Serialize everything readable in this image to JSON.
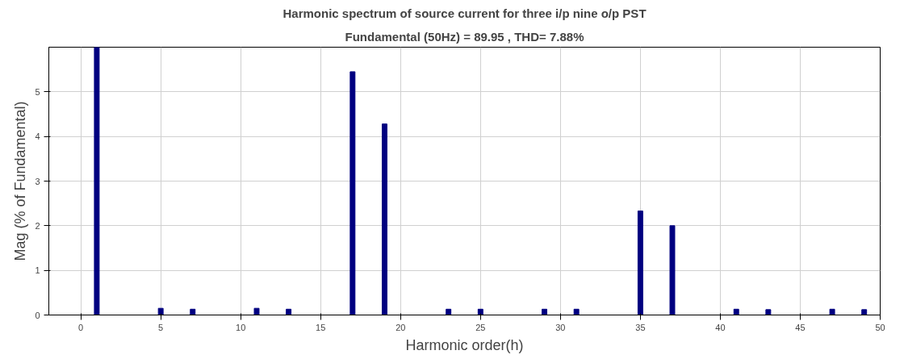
{
  "chart_data": {
    "type": "bar",
    "title": "Harmonic spectrum of source current for three i/p nine o/p PST",
    "subtitle": "Fundamental (50Hz) = 89.95 , THD= 7.88%",
    "xlabel": "Harmonic order(h)",
    "ylabel": "Mag (% of Fundamental)",
    "x": [
      1,
      5,
      7,
      11,
      13,
      17,
      19,
      23,
      25,
      29,
      31,
      35,
      37,
      41,
      43,
      47,
      49
    ],
    "values": [
      6,
      0.15,
      0.13,
      0.15,
      0.13,
      5.45,
      4.28,
      0.13,
      0.13,
      0.13,
      0.13,
      2.33,
      2.0,
      0.13,
      0.12,
      0.13,
      0.12
    ],
    "color": "#000080",
    "xlim": [
      -2,
      50
    ],
    "ylim": [
      0,
      6
    ],
    "xticks": [
      0,
      5,
      10,
      15,
      20,
      25,
      30,
      35,
      40,
      45,
      50
    ],
    "yticks": [
      0,
      1,
      2,
      3,
      4,
      5
    ],
    "grid": true
  }
}
